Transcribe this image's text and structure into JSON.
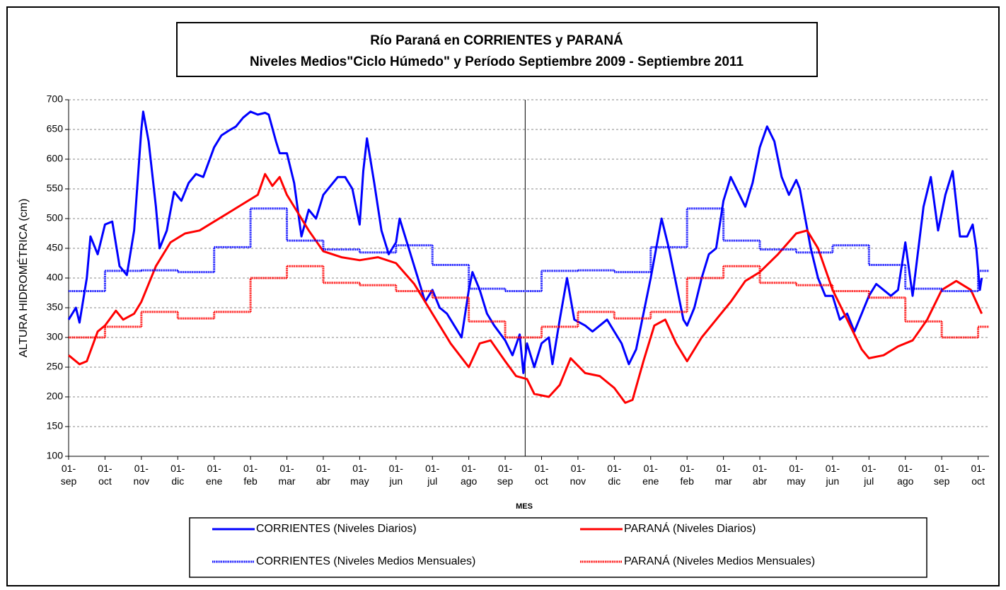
{
  "chart_data": {
    "type": "line",
    "title": "Río Paraná en CORRIENTES y PARANÁ",
    "subtitle": "Niveles Medios\"Ciclo Húmedo\" y Período Septiembre 2009 - Septiembre 2011",
    "y_label": "ALTURA HIDROMÉTRICA (cm)",
    "x_label": "MES",
    "xlim": [
      0,
      25.3
    ],
    "ylim": [
      100,
      700
    ],
    "yticks": [
      100,
      150,
      200,
      250,
      300,
      350,
      400,
      450,
      500,
      550,
      600,
      650,
      700
    ],
    "xticks": [
      {
        "value": 0,
        "label": "01-\nsep"
      },
      {
        "value": 1,
        "label": "01-\noct"
      },
      {
        "value": 2,
        "label": "01-\nnov"
      },
      {
        "value": 3,
        "label": "01-\ndic"
      },
      {
        "value": 4,
        "label": "01-\nene"
      },
      {
        "value": 5,
        "label": "01-\nfeb"
      },
      {
        "value": 6,
        "label": "01-\nmar"
      },
      {
        "value": 7,
        "label": "01-\nabr"
      },
      {
        "value": 8,
        "label": "01-\nmay"
      },
      {
        "value": 9,
        "label": "01-\njun"
      },
      {
        "value": 10,
        "label": "01-\njul"
      },
      {
        "value": 11,
        "label": "01-\nago"
      },
      {
        "value": 12,
        "label": "01-\nsep"
      },
      {
        "value": 13,
        "label": "01-\noct"
      },
      {
        "value": 14,
        "label": "01-\nnov"
      },
      {
        "value": 15,
        "label": "01-\ndic"
      },
      {
        "value": 16,
        "label": "01-\nene"
      },
      {
        "value": 17,
        "label": "01-\nfeb"
      },
      {
        "value": 18,
        "label": "01-\nmar"
      },
      {
        "value": 19,
        "label": "01-\nabr"
      },
      {
        "value": 20,
        "label": "01-\nmay"
      },
      {
        "value": 21,
        "label": "01-\njun"
      },
      {
        "value": 22,
        "label": "01-\njul"
      },
      {
        "value": 23,
        "label": "01-\nago"
      },
      {
        "value": 24,
        "label": "01-\nsep"
      },
      {
        "value": 25,
        "label": "01-\noct"
      }
    ],
    "grid": true,
    "divider_x": 12.55,
    "series": [
      {
        "name": "CORRIENTES (Niveles Diarios)",
        "color": "#0000ff",
        "style": "solid",
        "x": [
          0,
          0.2,
          0.3,
          0.5,
          0.6,
          0.8,
          1.0,
          1.2,
          1.4,
          1.6,
          1.8,
          2.0,
          2.05,
          2.2,
          2.4,
          2.5,
          2.7,
          2.9,
          3.1,
          3.3,
          3.5,
          3.7,
          4.0,
          4.2,
          4.4,
          4.6,
          4.8,
          5.0,
          5.2,
          5.4,
          5.5,
          5.7,
          5.8,
          6.0,
          6.2,
          6.4,
          6.6,
          6.8,
          7.0,
          7.2,
          7.4,
          7.6,
          7.8,
          8.0,
          8.1,
          8.2,
          8.4,
          8.6,
          8.8,
          9.0,
          9.1,
          9.3,
          9.6,
          9.8,
          10.0,
          10.2,
          10.4,
          10.6,
          10.8,
          11.0,
          11.1,
          11.3,
          11.5,
          11.7,
          12.0,
          12.2,
          12.4,
          12.5,
          12.6,
          12.8,
          13.0,
          13.2,
          13.3,
          13.5,
          13.7,
          13.9,
          14.2,
          14.4,
          14.6,
          14.8,
          15.0,
          15.2,
          15.4,
          15.6,
          15.8,
          16.0,
          16.3,
          16.5,
          16.7,
          16.9,
          17.0,
          17.2,
          17.4,
          17.6,
          17.8,
          18.0,
          18.2,
          18.4,
          18.6,
          18.8,
          19.0,
          19.2,
          19.4,
          19.6,
          19.8,
          20.0,
          20.1,
          20.4,
          20.6,
          20.8,
          21.0,
          21.2,
          21.4,
          21.6,
          21.8,
          22.0,
          22.2,
          22.4,
          22.6,
          22.8,
          23.0,
          23.2,
          23.5,
          23.7,
          23.9,
          24.1,
          24.3,
          24.5,
          24.7,
          24.85,
          24.95,
          25.05,
          25.1
        ],
        "values": [
          330,
          350,
          325,
          400,
          470,
          440,
          490,
          495,
          420,
          405,
          480,
          650,
          680,
          630,
          520,
          450,
          480,
          545,
          530,
          560,
          575,
          570,
          620,
          640,
          648,
          655,
          670,
          680,
          675,
          678,
          675,
          630,
          610,
          610,
          560,
          470,
          515,
          500,
          540,
          555,
          570,
          570,
          550,
          490,
          580,
          635,
          560,
          480,
          440,
          460,
          500,
          460,
          400,
          360,
          380,
          350,
          340,
          320,
          300,
          380,
          410,
          380,
          340,
          320,
          295,
          270,
          305,
          240,
          290,
          250,
          290,
          300,
          255,
          330,
          400,
          330,
          320,
          310,
          320,
          330,
          310,
          290,
          255,
          280,
          340,
          400,
          500,
          450,
          390,
          330,
          320,
          350,
          400,
          440,
          450,
          530,
          570,
          545,
          520,
          560,
          620,
          655,
          630,
          570,
          540,
          565,
          550,
          450,
          400,
          370,
          370,
          330,
          340,
          310,
          340,
          370,
          390,
          380,
          370,
          380,
          460,
          370,
          520,
          570,
          480,
          540,
          580,
          470,
          470,
          490,
          450,
          380,
          400
        ]
      },
      {
        "name": "PARANÁ (Niveles Diarios)",
        "color": "#ff0000",
        "style": "solid",
        "x": [
          0,
          0.3,
          0.5,
          0.8,
          1.0,
          1.3,
          1.5,
          1.8,
          2.0,
          2.4,
          2.8,
          3.2,
          3.6,
          4.0,
          4.4,
          4.8,
          5.2,
          5.4,
          5.6,
          5.8,
          6.0,
          6.3,
          6.6,
          7.0,
          7.5,
          8.0,
          8.5,
          9.0,
          9.5,
          10.0,
          10.5,
          11.0,
          11.3,
          11.6,
          12.0,
          12.3,
          12.6,
          12.8,
          13.2,
          13.5,
          13.8,
          14.2,
          14.6,
          15.0,
          15.3,
          15.5,
          15.8,
          16.1,
          16.4,
          16.7,
          17.0,
          17.4,
          17.8,
          18.2,
          18.6,
          19.0,
          19.5,
          20.0,
          20.3,
          20.6,
          21.0,
          21.4,
          21.8,
          22.0,
          22.4,
          22.8,
          23.2,
          23.6,
          24.0,
          24.4,
          24.8,
          25.1
        ],
        "values": [
          270,
          255,
          260,
          310,
          320,
          345,
          330,
          340,
          360,
          420,
          460,
          475,
          480,
          495,
          510,
          525,
          540,
          575,
          555,
          570,
          540,
          510,
          480,
          445,
          435,
          430,
          435,
          425,
          390,
          340,
          290,
          250,
          290,
          295,
          260,
          235,
          230,
          205,
          200,
          220,
          265,
          240,
          235,
          215,
          190,
          195,
          260,
          320,
          330,
          290,
          260,
          300,
          330,
          360,
          395,
          410,
          440,
          475,
          480,
          450,
          380,
          330,
          280,
          265,
          270,
          285,
          295,
          330,
          380,
          395,
          380,
          340
        ]
      },
      {
        "name": "CORRIENTES (Niveles Medios Mensuales)",
        "color": "#0000ff",
        "style": "step",
        "x": [
          0,
          1,
          2,
          3,
          4,
          5,
          6,
          7,
          8,
          9,
          10,
          11,
          12,
          13,
          14,
          15,
          16,
          17,
          18,
          19,
          20,
          21,
          22,
          23,
          24,
          25
        ],
        "values": [
          378,
          412,
          413,
          410,
          452,
          517,
          463,
          448,
          443,
          455,
          422,
          382,
          378,
          412,
          413,
          410,
          452,
          517,
          463,
          448,
          443,
          455,
          422,
          382,
          378,
          412
        ]
      },
      {
        "name": "PARANÁ (Niveles Medios Mensuales)",
        "color": "#ff0000",
        "style": "step",
        "x": [
          0,
          1,
          2,
          3,
          4,
          5,
          6,
          7,
          8,
          9,
          10,
          11,
          12,
          13,
          14,
          15,
          16,
          17,
          18,
          19,
          20,
          21,
          22,
          23,
          24,
          25
        ],
        "values": [
          300,
          318,
          343,
          332,
          343,
          400,
          420,
          392,
          388,
          378,
          367,
          327,
          300,
          318,
          343,
          332,
          343,
          400,
          420,
          392,
          388,
          378,
          367,
          327,
          300,
          318
        ]
      }
    ]
  }
}
